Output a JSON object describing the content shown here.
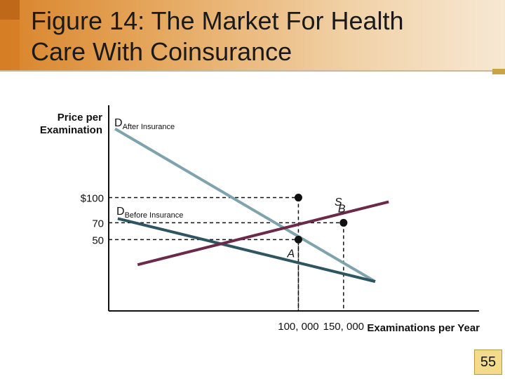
{
  "slide": {
    "title_line1": "Figure 14:  The Market For Health",
    "title_line2": "Care With Coinsurance",
    "page_number": "55"
  },
  "chart_data": {
    "type": "line",
    "ylabel_line1": "Price per",
    "ylabel_line2": "Examination",
    "xlabel": "Examinations per Year",
    "y_ticks": [
      {
        "value": 100,
        "label": "$100"
      },
      {
        "value": 70,
        "label": "70"
      },
      {
        "value": 50,
        "label": "50"
      }
    ],
    "x_ticks": [
      {
        "value": 100000,
        "label": "100, 000"
      },
      {
        "value": 150000,
        "label": "150, 000"
      }
    ],
    "xlim": [
      -110000,
      300000
    ],
    "ylim": [
      -35,
      210
    ],
    "series": [
      {
        "name": "D",
        "subscript": "After Insurance",
        "color": "#7ea3ad",
        "points": [
          [
            -103000,
            182
          ],
          [
            185000,
            0
          ]
        ]
      },
      {
        "name": "D",
        "subscript": "Before Insurance",
        "color": "#2e5562",
        "points": [
          [
            -100000,
            75
          ],
          [
            185000,
            0
          ]
        ]
      },
      {
        "name": "S",
        "subscript": "",
        "color": "#6b2a4a",
        "points": [
          [
            -78000,
            20
          ],
          [
            200000,
            95
          ]
        ]
      }
    ],
    "points": [
      {
        "label": "",
        "x": 100000,
        "y": 100
      },
      {
        "label": "B",
        "x": 150000,
        "y": 70
      },
      {
        "label": "A",
        "x": 100000,
        "y": 50
      }
    ]
  }
}
